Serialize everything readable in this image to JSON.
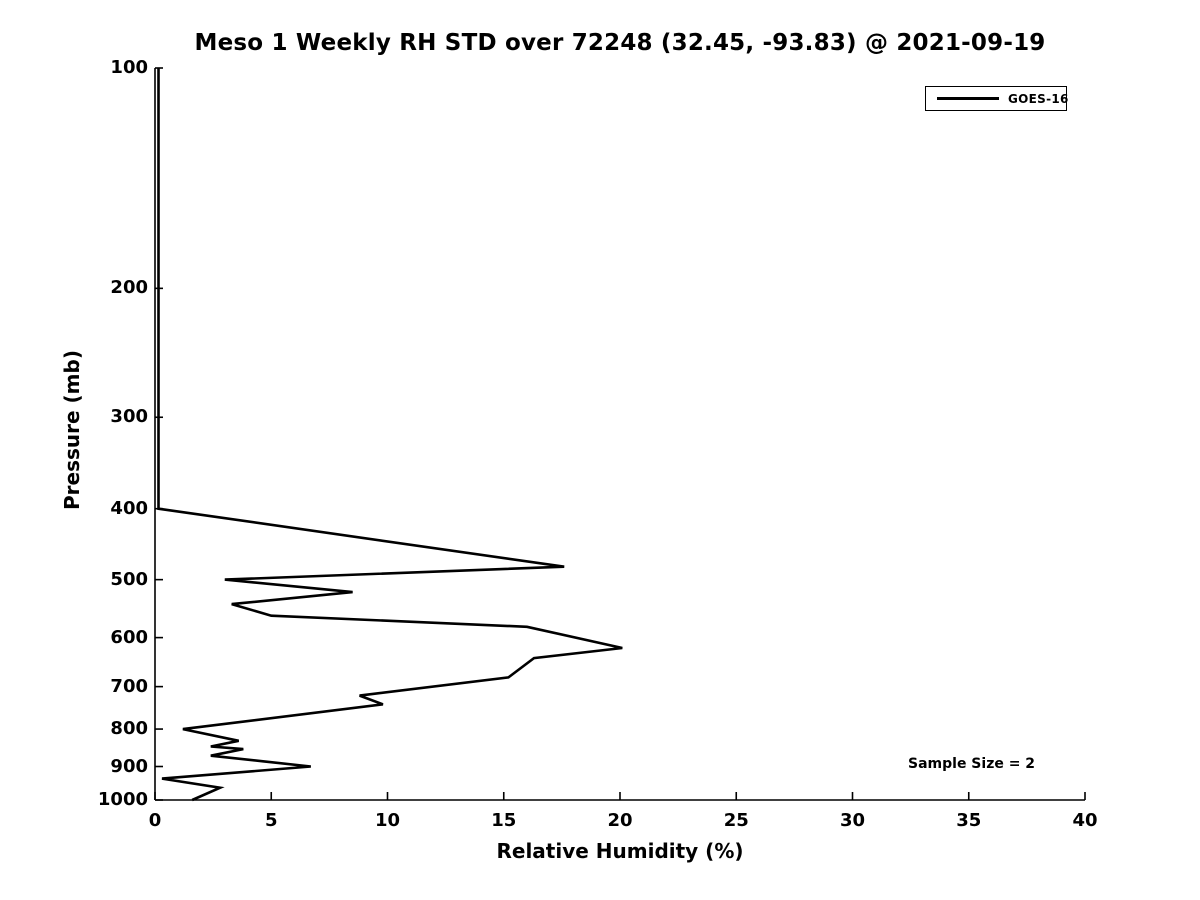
{
  "title": "Meso 1 Weekly RH STD over 72248 (32.45, -93.83) @ 2021-09-19",
  "annotations": {
    "sample_size": "Sample Size = 2"
  },
  "legend": {
    "position": "top-right",
    "entries": [
      {
        "label": "GOES-16",
        "color": "#000000"
      }
    ]
  },
  "colors": {
    "axis": "#000000",
    "background": "#ffffff",
    "line": "#000000"
  },
  "chart_data": {
    "type": "line",
    "title": "Meso 1 Weekly RH STD over 72248 (32.45, -93.83) @ 2021-09-19",
    "xlabel": "Relative Humidity (%)",
    "ylabel": "Pressure (mb)",
    "xlim": [
      0,
      40
    ],
    "x_ticks": [
      0,
      5,
      10,
      15,
      20,
      25,
      30,
      35,
      40
    ],
    "y_scale": "log",
    "y_inverted": true,
    "ylim": [
      100,
      1000
    ],
    "y_ticks": [
      100,
      200,
      300,
      400,
      500,
      600,
      700,
      800,
      900,
      1000
    ],
    "grid": false,
    "legend_position": "top-right",
    "series": [
      {
        "name": "GOES-16",
        "color": "#000000",
        "points_format": "[rh_std_percent, pressure_mb]",
        "points": [
          [
            0.15,
            100
          ],
          [
            0.15,
            400
          ],
          [
            17.6,
            480
          ],
          [
            3.0,
            500
          ],
          [
            8.5,
            520
          ],
          [
            3.3,
            540
          ],
          [
            5.0,
            560
          ],
          [
            16.0,
            580
          ],
          [
            20.1,
            620
          ],
          [
            16.3,
            640
          ],
          [
            15.2,
            680
          ],
          [
            8.8,
            720
          ],
          [
            9.8,
            740
          ],
          [
            1.2,
            800
          ],
          [
            3.6,
            830
          ],
          [
            2.4,
            845
          ],
          [
            3.8,
            852
          ],
          [
            2.4,
            870
          ],
          [
            6.7,
            900
          ],
          [
            0.3,
            935
          ],
          [
            2.8,
            962
          ],
          [
            1.6,
            1000
          ]
        ]
      }
    ]
  }
}
